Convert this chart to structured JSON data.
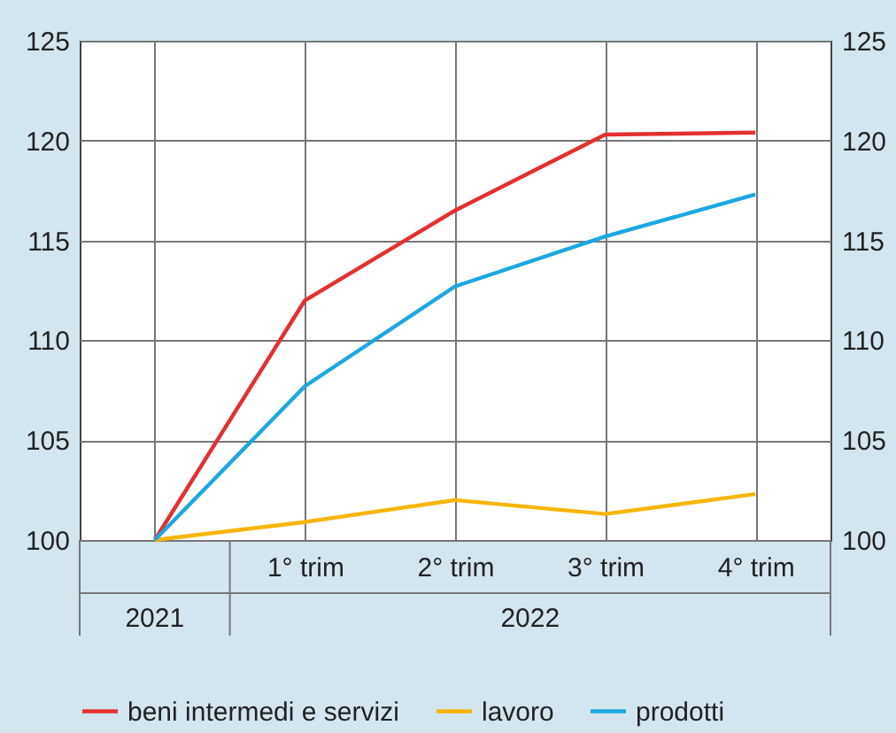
{
  "chart_data": {
    "type": "line",
    "categories": [
      null,
      "1° trim",
      "2° trim",
      "3° trim",
      "4° trim"
    ],
    "series": [
      {
        "name": "beni intermedi e servizi",
        "color": "#e52f2f",
        "values": [
          100,
          112.0,
          116.5,
          120.3,
          120.4
        ]
      },
      {
        "name": "lavoro",
        "color": "#f7b500",
        "values": [
          100,
          100.9,
          102.0,
          101.3,
          102.3
        ]
      },
      {
        "name": "prodotti",
        "color": "#1ba8e0",
        "values": [
          100,
          107.7,
          112.7,
          115.2,
          117.3
        ]
      }
    ],
    "ylim": [
      100,
      125
    ],
    "yticks": [
      100,
      105,
      110,
      115,
      120,
      125
    ],
    "y2lim": [
      100,
      125
    ],
    "y2ticks": [
      100,
      105,
      110,
      115,
      120,
      125
    ],
    "annotations": [
      "2021",
      "2022"
    ],
    "grid": true,
    "legend": "bottom",
    "marker": "none",
    "line_style": "solid"
  }
}
